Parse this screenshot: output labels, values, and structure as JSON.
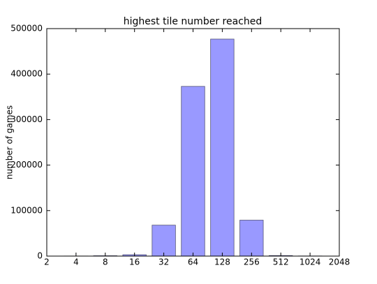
{
  "chart_data": {
    "type": "bar",
    "title": "highest tile number reached",
    "y_label": "number of games",
    "categories": [
      "2",
      "4",
      "8",
      "16",
      "32",
      "64",
      "128",
      "256",
      "512",
      "1024",
      "2048"
    ],
    "values": [
      0,
      200,
      800,
      3000,
      68000,
      373000,
      477000,
      79000,
      1200,
      300,
      0
    ],
    "color": "#9999ff",
    "edge_color": "#555577",
    "ylim": [
      0,
      500000
    ],
    "yticks": [
      0,
      100000,
      200000,
      300000,
      400000,
      500000
    ],
    "grid": false
  }
}
